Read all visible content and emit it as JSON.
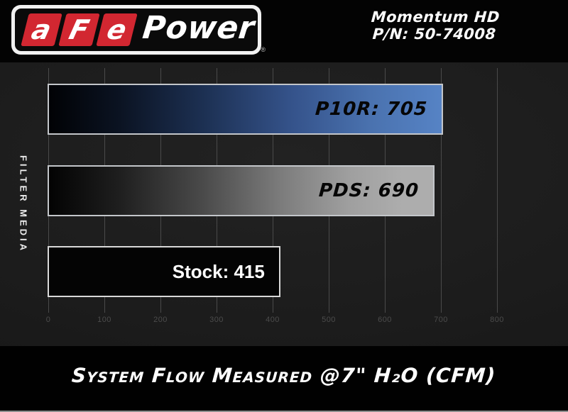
{
  "header": {
    "logo": {
      "letters": [
        "a",
        "F",
        "e"
      ],
      "wordmark": "Power",
      "registered": "®"
    },
    "product": {
      "line1": "Momentum HD",
      "line2": "P/N: 50-74008"
    }
  },
  "chart_data": {
    "type": "bar",
    "orientation": "horizontal",
    "title": "System Flow Measured @7\" H₂O (CFM)",
    "ylabel": "FILTER MEDIA",
    "xlabel": "",
    "xlim": [
      0,
      800
    ],
    "xticks": [
      0,
      100,
      200,
      300,
      400,
      500,
      600,
      700,
      800
    ],
    "grid": true,
    "legend": "none",
    "categories": [
      "P10R",
      "PDS",
      "Stock"
    ],
    "values": [
      705,
      690,
      415
    ],
    "bars": [
      {
        "name": "P10R",
        "value": 705,
        "label": "P10R: 705",
        "fill": "gradient-black-to-blue",
        "label_style": "italic"
      },
      {
        "name": "PDS",
        "value": 690,
        "label": "PDS: 690",
        "fill": "gradient-black-to-gray",
        "label_style": "italic"
      },
      {
        "name": "Stock",
        "value": 415,
        "label": "Stock: 415",
        "fill": "solid-black",
        "label_style": "plain"
      }
    ],
    "colors": {
      "background": "#1c1c1c",
      "grid": "#4a4a4a",
      "tick_label": "#4c4c4c",
      "bar_border": "#c3c6ca",
      "accent_blue": "#5683c5",
      "accent_gray": "#adadad",
      "accent_red": "#d22731"
    }
  }
}
